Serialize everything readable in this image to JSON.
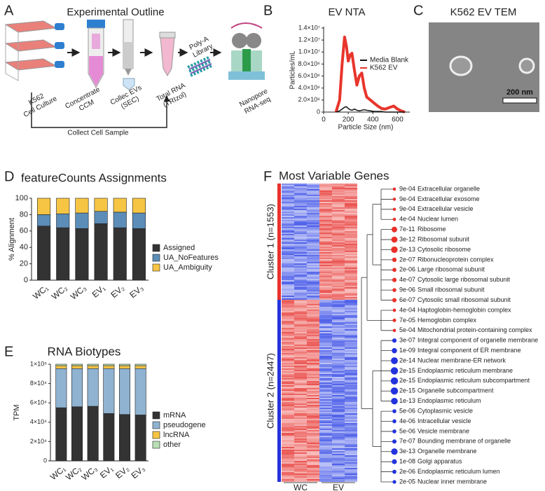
{
  "panel_labels": [
    "A",
    "B",
    "C",
    "D",
    "E",
    "F"
  ],
  "outline": {
    "title": "Experimental Outline",
    "steps": [
      [
        "K562",
        "Cell Culture"
      ],
      [
        "Concentrate",
        "CCM"
      ],
      [
        "Collec EVs",
        "(SEC)"
      ],
      [
        "Total RNA",
        "(TRIzol)"
      ],
      [
        "Poly-A",
        "Library"
      ],
      [
        "Nanopore",
        "RNA-seq"
      ]
    ],
    "loop": "Collect Cell Sample"
  },
  "tem": {
    "title": "K562 EV TEM",
    "scale": "200 nm"
  },
  "chart_data": [
    {
      "type": "line",
      "title": "EV NTA",
      "xlabel": "Particle Size (nm)",
      "ylabel": "Particles/mL",
      "x": [
        100,
        130,
        150,
        170,
        185,
        200,
        215,
        230,
        250,
        270,
        290,
        310,
        330,
        350,
        380,
        410,
        440,
        470,
        500,
        540,
        570,
        600,
        630,
        660
      ],
      "series": [
        {
          "name": "Media Blank",
          "color": "#111111",
          "values": [
            0,
            200000,
            500000,
            800000,
            900000,
            600000,
            400000,
            300000,
            500000,
            300000,
            200000,
            300000,
            400000,
            300000,
            200000,
            100000,
            100000,
            100000,
            0,
            0,
            0,
            0,
            0,
            0
          ]
        },
        {
          "name": "K562 EV",
          "color": "#e8352c",
          "values": [
            0,
            2000000,
            8000000,
            12500000,
            11000000,
            8500000,
            9500000,
            9800000,
            7000000,
            4500000,
            6000000,
            6500000,
            4000000,
            2500000,
            2000000,
            1500000,
            1000000,
            600000,
            500000,
            800000,
            1000000,
            500000,
            200000,
            0
          ]
        }
      ],
      "xlim": [
        0,
        700
      ],
      "xticks": [
        0,
        200,
        400,
        600
      ],
      "ylim": [
        0,
        14000000
      ],
      "yticks": [
        0,
        {
          "value": 2000000,
          "label": "2.0×10⁶"
        },
        {
          "value": 4000000,
          "label": "4.0×10⁶"
        },
        {
          "value": 6000000,
          "label": "6.0×10⁶"
        },
        {
          "value": 8000000,
          "label": "8.0×10⁶"
        },
        {
          "value": 10000000,
          "label": "1.0×10⁷"
        },
        {
          "value": 12000000,
          "label": "1.2×10⁷"
        },
        {
          "value": 14000000,
          "label": "1.4×10⁷"
        }
      ],
      "legend": "right"
    },
    {
      "type": "bar",
      "stacked": true,
      "title": "featureCounts Assignments",
      "ylabel": "% Alignment",
      "categories": [
        "WC₁",
        "WC₂",
        "WC₃",
        "EV₁",
        "EV₂",
        "EV₃"
      ],
      "series": [
        {
          "name": "Assigned",
          "color": "#333333",
          "values": [
            66,
            64,
            63,
            69,
            64,
            63
          ]
        },
        {
          "name": "UA_NoFeatures",
          "color": "#5b8db8",
          "values": [
            14,
            17,
            19,
            15,
            19,
            19
          ]
        },
        {
          "name": "UA_Ambiguity",
          "color": "#f7c544",
          "values": [
            20,
            19,
            18,
            16,
            17,
            18
          ]
        }
      ],
      "ylim": [
        0,
        100
      ],
      "yticks": [
        0,
        20,
        40,
        60,
        80,
        100
      ],
      "legend": "right"
    },
    {
      "type": "bar",
      "stacked": true,
      "title": "RNA Biotypes",
      "ylabel": "TPM",
      "categories": [
        "WC₁",
        "WC₂",
        "WC₃",
        "EV₁",
        "EV₂",
        "EV₃"
      ],
      "series": [
        {
          "name": "mRNA",
          "color": "#333333",
          "values": [
            55000,
            56000,
            56500,
            49000,
            48000,
            47500
          ]
        },
        {
          "name": "pseudogene",
          "color": "#8fb3d1",
          "values": [
            40500,
            39500,
            39000,
            46500,
            47500,
            48000
          ]
        },
        {
          "name": "lncRNA",
          "color": "#f7c544",
          "values": [
            3000,
            3000,
            3000,
            3000,
            3000,
            3000
          ]
        },
        {
          "name": "other",
          "color": "#b9e0b5",
          "values": [
            1500,
            1500,
            1500,
            1500,
            1500,
            1500
          ]
        }
      ],
      "ylim": [
        0,
        100000
      ],
      "yticks": [
        0,
        {
          "value": 20000,
          "label": "2×10⁴"
        },
        {
          "value": 40000,
          "label": "4×10⁴"
        },
        {
          "value": 60000,
          "label": "6×10⁴"
        },
        {
          "value": 80000,
          "label": "8×10⁴"
        },
        {
          "value": 100000,
          "label": "1×10⁵"
        }
      ],
      "legend": "right"
    }
  ],
  "heatmap": {
    "title": "Most Variable Genes",
    "clusters": [
      {
        "name": "Cluster 1 (n=1553)",
        "color": "#e8312a"
      },
      {
        "name": "Cluster 2 (n=2447)",
        "color": "#2233dd"
      }
    ],
    "columns": [
      "WC",
      "EV"
    ],
    "terms": [
      {
        "p": "9e-04",
        "name": "Extracellular organelle",
        "color": "#e8312a"
      },
      {
        "p": "9e-04",
        "name": "Extracellular exosome",
        "color": "#e8312a"
      },
      {
        "p": "9e-04",
        "name": "Extracellular vesicle",
        "color": "#e8312a"
      },
      {
        "p": "4e-04",
        "name": "Nuclear lumen",
        "color": "#e8312a"
      },
      {
        "p": "7e-11",
        "name": "Ribosome",
        "color": "#e8312a"
      },
      {
        "p": "3e-12",
        "name": "Ribosomal subunit",
        "color": "#e8312a"
      },
      {
        "p": "2e-13",
        "name": "Cytosolic ribosome",
        "color": "#e8312a"
      },
      {
        "p": "2e-07",
        "name": "Ribonucleoprotein complex",
        "color": "#e8312a"
      },
      {
        "p": "2e-06",
        "name": "Large ribosomal subunit",
        "color": "#e8312a"
      },
      {
        "p": "4e-07",
        "name": "Cytosolic large ribosomal subunit",
        "color": "#e8312a"
      },
      {
        "p": "9e-06",
        "name": "Small ribosomal subunit",
        "color": "#e8312a"
      },
      {
        "p": "6e-07",
        "name": "Cytosolic small ribosomal subunit",
        "color": "#e8312a"
      },
      {
        "p": "4e-04",
        "name": "Haptoglobin-hemoglobin complex",
        "color": "#e8312a"
      },
      {
        "p": "7e-05",
        "name": "Hemoglobin complex",
        "color": "#e8312a"
      },
      {
        "p": "5e-04",
        "name": "Mitochondrial protein-containing complex",
        "color": "#e8312a"
      },
      {
        "p": "3e-07",
        "name": "Integral component of organelle membrane",
        "color": "#2233dd"
      },
      {
        "p": "1e-09",
        "name": "Integral component of ER membrane",
        "color": "#2233dd"
      },
      {
        "p": "2e-14",
        "name": "Nuclear membrane-ER network",
        "color": "#2233dd"
      },
      {
        "p": "2e-15",
        "name": "Endoplasmic reticulum membrane",
        "color": "#2233dd"
      },
      {
        "p": "2e-15",
        "name": "Endoplasmic reticulum subcompartment",
        "color": "#2233dd"
      },
      {
        "p": "2e-15",
        "name": "Organelle subcompartment",
        "color": "#2233dd"
      },
      {
        "p": "1e-13",
        "name": "Endoplasmic reticulum",
        "color": "#2233dd"
      },
      {
        "p": "5e-06",
        "name": "Cytoplasmic vesicle",
        "color": "#2233dd"
      },
      {
        "p": "4e-06",
        "name": "Intracellular vesicle",
        "color": "#2233dd"
      },
      {
        "p": "5e-06",
        "name": "Vesicle membrane",
        "color": "#2233dd"
      },
      {
        "p": "7e-07",
        "name": "Bounding membrane of organelle",
        "color": "#2233dd"
      },
      {
        "p": "3e-13",
        "name": "Organelle membrane",
        "color": "#2233dd"
      },
      {
        "p": "1e-08",
        "name": "Golgi apparatus",
        "color": "#2233dd"
      },
      {
        "p": "2e-06",
        "name": "Endoplasmic reticulum lumen",
        "color": "#2233dd"
      },
      {
        "p": "2e-05",
        "name": "Nuclear inner membrane",
        "color": "#2233dd"
      }
    ]
  }
}
